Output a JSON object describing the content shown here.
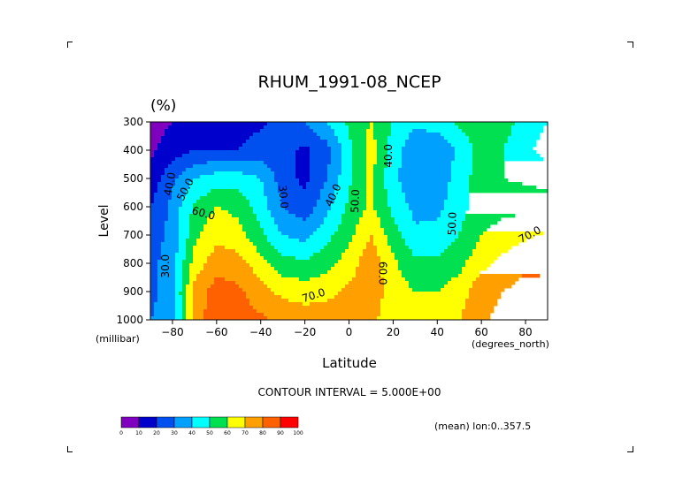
{
  "chart_data": {
    "type": "heatmap",
    "title": "RHUM_1991-08_NCEP",
    "units": "(%)",
    "xlabel": "Latitude",
    "x_unit": "(degrees_north)",
    "ylabel": "Level",
    "y_unit": "(millibar)",
    "xlim": [
      -90,
      90
    ],
    "ylim": [
      1000,
      300
    ],
    "x_ticks": [
      -80,
      -60,
      -40,
      -20,
      0,
      20,
      40,
      60,
      80
    ],
    "x_tick_labels": [
      "−80",
      "−60",
      "−40",
      "−20",
      "0",
      "20",
      "40",
      "60",
      "80"
    ],
    "y_ticks": [
      300,
      400,
      500,
      600,
      700,
      800,
      900,
      1000
    ],
    "y_tick_labels": [
      "300",
      "400",
      "500",
      "600",
      "700",
      "800",
      "900",
      "1000"
    ],
    "contour_interval_text": "CONTOUR INTERVAL = 5.000E+00",
    "mean_text": "(mean) lon:0..357.5",
    "contour_labels": [
      {
        "text": "40.0",
        "lat": -81,
        "p": 520,
        "rot": -80
      },
      {
        "text": "50.0",
        "lat": -74,
        "p": 540,
        "rot": -62
      },
      {
        "text": "60.0",
        "lat": -66,
        "p": 625,
        "rot": 15
      },
      {
        "text": "30.0",
        "lat": -83,
        "p": 810,
        "rot": -90
      },
      {
        "text": "30.0",
        "lat": -30,
        "p": 565,
        "rot": 85
      },
      {
        "text": "40.0",
        "lat": -7,
        "p": 560,
        "rot": -65
      },
      {
        "text": "50.0",
        "lat": 3,
        "p": 580,
        "rot": -88
      },
      {
        "text": "70.0",
        "lat": -16,
        "p": 915,
        "rot": -18
      },
      {
        "text": "60.0",
        "lat": 15,
        "p": 835,
        "rot": 90
      },
      {
        "text": "40.0",
        "lat": 18,
        "p": 420,
        "rot": -90
      },
      {
        "text": "50.0",
        "lat": 47,
        "p": 660,
        "rot": -88
      },
      {
        "text": "70.0",
        "lat": 82,
        "p": 700,
        "rot": -28
      }
    ],
    "latitudes": [
      -90,
      -80,
      -70,
      -60,
      -50,
      -40,
      -30,
      -20,
      -10,
      0,
      10,
      20,
      30,
      40,
      50,
      60,
      70,
      80,
      90
    ],
    "levels": [
      300,
      400,
      500,
      600,
      700,
      800,
      900,
      1000
    ],
    "values": [
      [
        6,
        10,
        15,
        15,
        15,
        18,
        25,
        30,
        40,
        52,
        60,
        50,
        42,
        45,
        52,
        58,
        55,
        45,
        40
      ],
      [
        8,
        15,
        20,
        20,
        20,
        25,
        23,
        18,
        26,
        47,
        65,
        45,
        32,
        32,
        42,
        55,
        50,
        42,
        36
      ],
      [
        14,
        28,
        40,
        45,
        45,
        40,
        25,
        17,
        30,
        48,
        62,
        42,
        33,
        33,
        45,
        55,
        50,
        48,
        46
      ],
      [
        20,
        33,
        52,
        60,
        57,
        45,
        30,
        24,
        37,
        52,
        62,
        47,
        37,
        37,
        47,
        54,
        57,
        57,
        55
      ],
      [
        25,
        33,
        57,
        68,
        64,
        52,
        40,
        36,
        47,
        57,
        70,
        55,
        42,
        44,
        50,
        60,
        65,
        68,
        72
      ],
      [
        27,
        35,
        65,
        75,
        74,
        64,
        54,
        52,
        57,
        65,
        77,
        62,
        52,
        52,
        57,
        67,
        73,
        78,
        78
      ],
      [
        27,
        37,
        73,
        85,
        82,
        74,
        67,
        65,
        67,
        72,
        75,
        66,
        60,
        60,
        65,
        77,
        80,
        84,
        82
      ],
      [
        30,
        35,
        75,
        87,
        84,
        82,
        78,
        76,
        76,
        77,
        72,
        65,
        62,
        64,
        70,
        78,
        83,
        88,
        90
      ]
    ],
    "colorbar_levels": [
      0,
      10,
      20,
      30,
      40,
      50,
      60,
      70,
      80,
      90,
      100
    ],
    "colorbar_tick_labels": [
      "0",
      "10",
      "20",
      "30",
      "40",
      "50",
      "60",
      "70",
      "80",
      "90",
      "100"
    ],
    "colorbar_colors": [
      "#8000c0",
      "#0000cc",
      "#0050f0",
      "#00a0ff",
      "#00ffff",
      "#00e050",
      "#ffff00",
      "#ffa000",
      "#ff6000",
      "#ff0000"
    ],
    "grid": false
  }
}
